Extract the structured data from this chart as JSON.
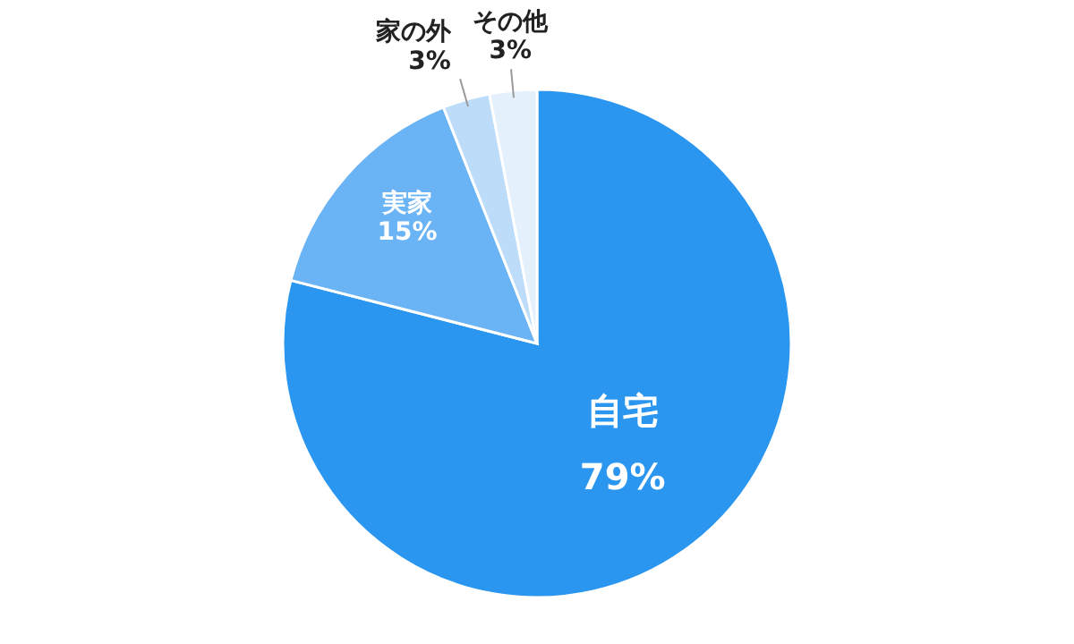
{
  "chart_data": {
    "type": "pie",
    "categories": [
      "自宅",
      "実家",
      "家の外",
      "その他"
    ],
    "values": [
      79,
      15,
      3,
      3
    ],
    "value_labels": [
      "79%",
      "15%",
      "3%",
      "3%"
    ],
    "colors": [
      "#2b96ef",
      "#6ab4f5",
      "#bcdcfa",
      "#e4f1fd"
    ]
  }
}
